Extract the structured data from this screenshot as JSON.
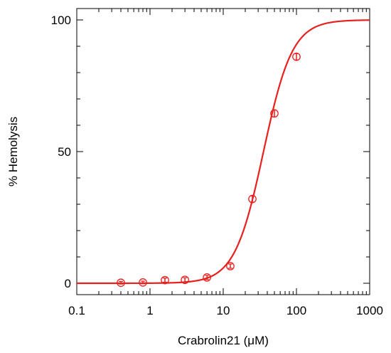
{
  "chart_data": {
    "type": "scatter",
    "title": "",
    "xlabel": "Crabrolin21 (μM)",
    "ylabel": "% Hemolysis",
    "xscale": "log",
    "xlim": [
      0.1,
      1000
    ],
    "ylim": [
      -5,
      103
    ],
    "x_ticks": [
      0.1,
      1,
      10,
      100,
      1000
    ],
    "x_tick_labels": [
      "0.1",
      "1",
      "10",
      "100",
      "1000"
    ],
    "y_ticks": [
      0,
      50,
      100
    ],
    "y_tick_labels": [
      "0",
      "50",
      "100"
    ],
    "grid": false,
    "legend": "none",
    "series": [
      {
        "kind": "points-with-error-bars",
        "x": [
          0.4,
          0.8,
          1.6,
          3,
          6,
          12.5,
          25,
          50,
          100
        ],
        "y": [
          0.2,
          0.3,
          1.2,
          1.3,
          2.2,
          6.5,
          32,
          64.5,
          86
        ],
        "error": [
          0.5,
          0.5,
          0.8,
          0.8,
          0.8,
          0.8,
          1.2,
          1.3,
          1.2
        ],
        "color": "#e8201e"
      },
      {
        "kind": "fitted-curve",
        "model": "sigmoid",
        "ec50": 35.5,
        "hill": 2.2,
        "bottom": 0,
        "top": 100,
        "color": "#e8201e"
      }
    ]
  }
}
